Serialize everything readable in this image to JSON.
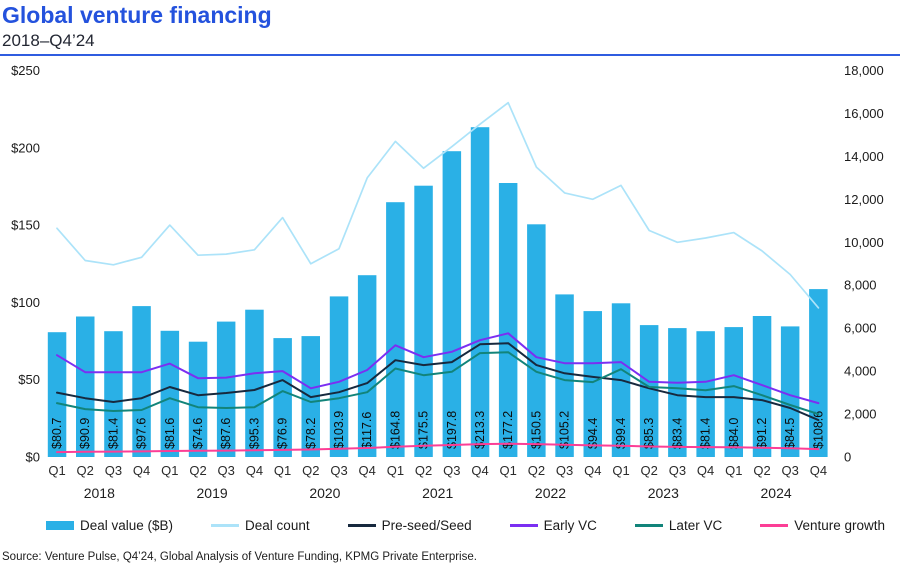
{
  "header": {
    "title": "Global venture financing",
    "subtitle": "2018–Q4’24"
  },
  "source": "Source: Venture Pulse, Q4’24, Global Analysis of Venture Funding, KPMG Private Enterprise.",
  "legend": [
    {
      "label": "Deal value ($B)",
      "type": "bar",
      "color": "#2ab0e6"
    },
    {
      "label": "Deal count",
      "type": "line",
      "color": "#ace3f9"
    },
    {
      "label": "Pre-seed/Seed",
      "type": "line",
      "color": "#17293e"
    },
    {
      "label": "Early VC",
      "type": "line",
      "color": "#7b2ff2"
    },
    {
      "label": "Later VC",
      "type": "line",
      "color": "#12847a"
    },
    {
      "label": "Venture growth",
      "type": "line",
      "color": "#fc3e96"
    }
  ],
  "chart_data": {
    "type": "bar+line combo",
    "title": "Global venture financing",
    "subtitle": "2018–Q4’24",
    "grid": false,
    "legend_position": "bottom",
    "categories": [
      "Q1 2018",
      "Q2 2018",
      "Q3 2018",
      "Q4 2018",
      "Q1 2019",
      "Q2 2019",
      "Q3 2019",
      "Q4 2019",
      "Q1 2020",
      "Q2 2020",
      "Q3 2020",
      "Q4 2020",
      "Q1 2021",
      "Q2 2021",
      "Q3 2021",
      "Q4 2021",
      "Q1 2022",
      "Q2 2022",
      "Q3 2022",
      "Q4 2022",
      "Q1 2023",
      "Q2 2023",
      "Q3 2023",
      "Q4 2023",
      "Q1 2024",
      "Q2 2024",
      "Q3 2024",
      "Q4 2024"
    ],
    "bar_series": {
      "name": "Deal value ($B)",
      "axis": "left",
      "color": "#2ab0e6",
      "values": [
        80.7,
        90.9,
        81.4,
        97.6,
        81.6,
        74.6,
        87.6,
        95.3,
        76.9,
        78.2,
        103.9,
        117.6,
        164.8,
        175.5,
        197.8,
        213.3,
        177.2,
        150.5,
        105.2,
        94.4,
        99.4,
        85.3,
        83.4,
        81.4,
        84.0,
        91.2,
        84.5,
        108.6
      ],
      "labels": [
        "$80.7",
        "$90.9",
        "$81.4",
        "$97.6",
        "$81.6",
        "$74.6",
        "$87.6",
        "$95.3",
        "$76.9",
        "$78.2",
        "$103.9",
        "$117.6",
        "$164.8",
        "$175.5",
        "$197.8",
        "$213.3",
        "$177.2",
        "$150.5",
        "$105.2",
        "$94.4",
        "$99.4",
        "$85.3",
        "$83.4",
        "$81.4",
        "$84.0",
        "$91.2",
        "$84.5",
        "$108.6"
      ]
    },
    "line_series": [
      {
        "name": "Deal count",
        "axis": "right",
        "color": "#ace3f9",
        "values": [
          10650,
          9150,
          8950,
          9300,
          10800,
          9400,
          9450,
          9650,
          11150,
          9000,
          9700,
          13000,
          14700,
          13450,
          14450,
          15500,
          16500,
          13500,
          12300,
          12000,
          12650,
          10550,
          10000,
          10200,
          10450,
          9600,
          8500,
          6950
        ]
      },
      {
        "name": "Pre-seed/Seed",
        "axis": "right",
        "color": "#17293e",
        "values": [
          3000,
          2740,
          2560,
          2740,
          3260,
          2880,
          2980,
          3120,
          3580,
          2790,
          3020,
          3440,
          4510,
          4280,
          4420,
          5250,
          5300,
          4280,
          3900,
          3730,
          3580,
          3200,
          2880,
          2790,
          2790,
          2650,
          2280,
          1720
        ]
      },
      {
        "name": "Early VC",
        "axis": "right",
        "color": "#7b2ff2",
        "values": [
          4740,
          3950,
          3950,
          3950,
          4350,
          3670,
          3700,
          3900,
          4000,
          3200,
          3500,
          4050,
          5200,
          4650,
          4900,
          5440,
          5760,
          4650,
          4370,
          4370,
          4420,
          3500,
          3460,
          3500,
          3810,
          3350,
          2880,
          2510
        ]
      },
      {
        "name": "Later VC",
        "axis": "right",
        "color": "#12847a",
        "values": [
          2510,
          2230,
          2140,
          2190,
          2740,
          2320,
          2280,
          2320,
          3070,
          2560,
          2740,
          3020,
          4120,
          3810,
          3970,
          4840,
          4880,
          3970,
          3580,
          3490,
          4090,
          3260,
          3200,
          3110,
          3300,
          2880,
          2420,
          2000
        ]
      },
      {
        "name": "Venture growth",
        "axis": "right",
        "color": "#fc3e96",
        "values": [
          230,
          240,
          250,
          260,
          280,
          290,
          300,
          310,
          330,
          350,
          380,
          420,
          480,
          520,
          560,
          600,
          620,
          600,
          570,
          540,
          520,
          490,
          470,
          460,
          450,
          430,
          410,
          370
        ]
      }
    ],
    "left_axis": {
      "min": 0,
      "max": 250,
      "tick_values": [
        0,
        50,
        100,
        150,
        200,
        250
      ],
      "tick_labels": [
        "$0",
        "$50",
        "$100",
        "$150",
        "$200",
        "$250"
      ]
    },
    "right_axis": {
      "min": 0,
      "max": 18000,
      "tick_values": [
        0,
        2000,
        4000,
        6000,
        8000,
        10000,
        12000,
        14000,
        16000,
        18000
      ],
      "tick_labels": [
        "0",
        "2,000",
        "4,000",
        "6,000",
        "8,000",
        "10,000",
        "12,000",
        "14,000",
        "16,000",
        "18,000"
      ]
    },
    "x_axis": {
      "quarter_labels": [
        "Q1",
        "Q2",
        "Q3",
        "Q4",
        "Q1",
        "Q2",
        "Q3",
        "Q4",
        "Q1",
        "Q2",
        "Q3",
        "Q4",
        "Q1",
        "Q2",
        "Q3",
        "Q4",
        "Q1",
        "Q2",
        "Q3",
        "Q4",
        "Q1",
        "Q2",
        "Q3",
        "Q4",
        "Q1",
        "Q2",
        "Q3",
        "Q4"
      ],
      "year_labels": [
        "2018",
        "2019",
        "2020",
        "2021",
        "2022",
        "2023",
        "2024"
      ]
    }
  }
}
